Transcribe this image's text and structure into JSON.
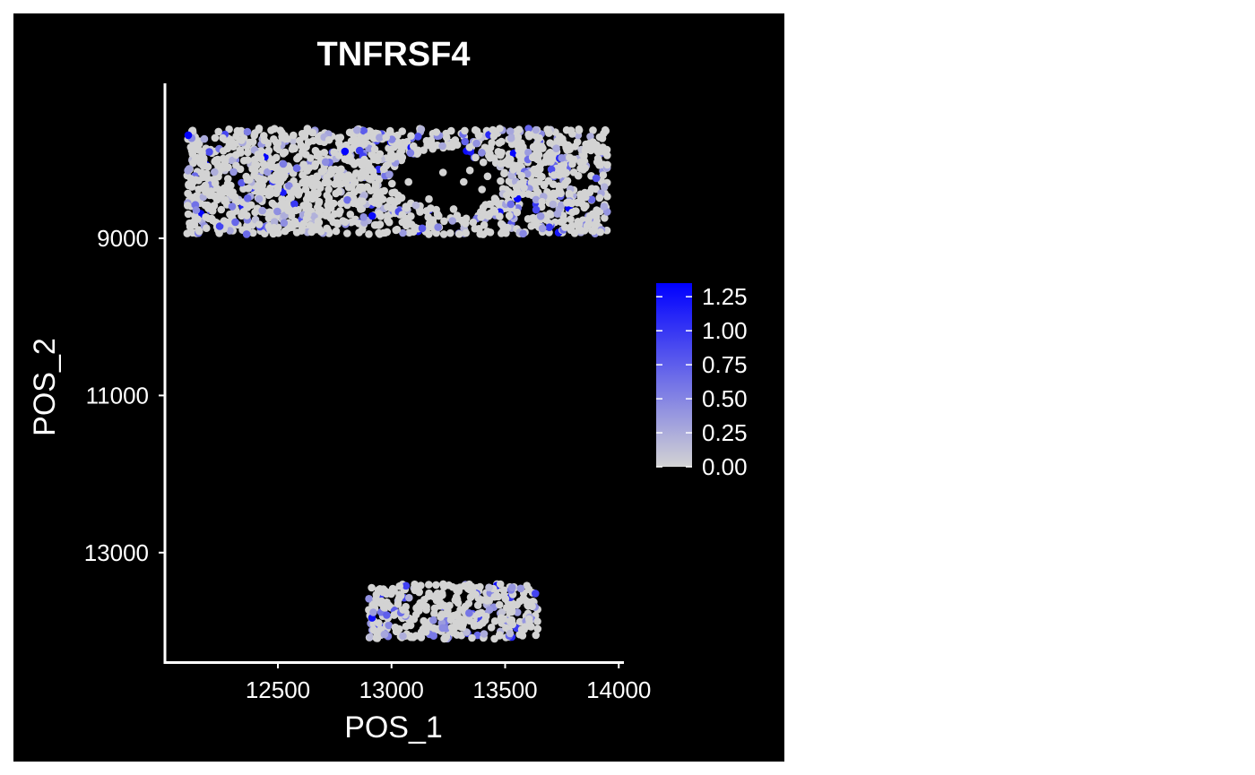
{
  "chart_data": {
    "type": "scatter",
    "title": "TNFRSF4",
    "xlabel": "POS_1",
    "ylabel": "POS_2",
    "x_ticks": [
      12500,
      13000,
      13500,
      14000
    ],
    "y_ticks": [
      9000,
      11000,
      13000
    ],
    "xlim": [
      12000,
      14050
    ],
    "ylim": [
      7000,
      14300
    ],
    "y_reversed": true,
    "grid": false,
    "legend_position": "right",
    "colors": {
      "background": "#000000",
      "low": "#d3d3d3",
      "high": "#0000ff",
      "foreground": "#ffffff"
    },
    "color_scale": {
      "min": 0.0,
      "max": 1.35,
      "ticks": [
        0.0,
        0.25,
        0.5,
        0.75,
        1.0,
        1.25
      ],
      "tick_labels": [
        "0.00",
        "0.25",
        "0.50",
        "0.75",
        "1.00",
        "1.25"
      ]
    },
    "clusters": [
      {
        "name": "upper",
        "x_range": [
          12100,
          13950
        ],
        "y_range": [
          7600,
          8950
        ],
        "n_points": 1500,
        "hole_center": [
          13250,
          8250
        ],
        "hole_radius_x": 250,
        "hole_radius_y": 380,
        "expression_mean": 0.12
      },
      {
        "name": "lower",
        "x_range": [
          12900,
          13650
        ],
        "y_range": [
          13400,
          14100
        ],
        "n_points": 380,
        "expression_mean": 0.1
      }
    ]
  }
}
